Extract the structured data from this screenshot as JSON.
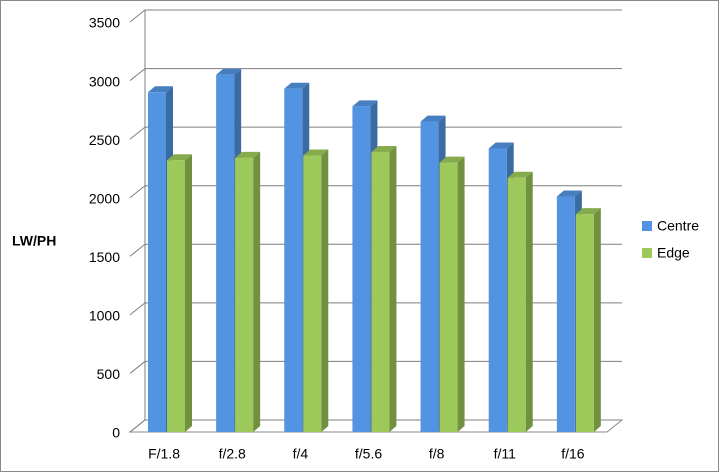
{
  "chart_data": {
    "type": "bar3d",
    "y_axis_label": "LW/PH",
    "categories": [
      "F/1.8",
      "f/2.8",
      "f/4",
      "f/5.6",
      "f/8",
      "f/11",
      "f/16"
    ],
    "series": [
      {
        "name": "Centre",
        "color": "#5294e2",
        "values": [
          2900,
          3050,
          2930,
          2780,
          2650,
          2420,
          2010
        ]
      },
      {
        "name": "Edge",
        "color": "#9dc95a",
        "values": [
          2320,
          2340,
          2360,
          2390,
          2300,
          2170,
          1860
        ]
      }
    ],
    "ylim": [
      0,
      3500
    ],
    "yticks": [
      0,
      500,
      1000,
      1500,
      2000,
      2500,
      3000,
      3500
    ],
    "grid": true,
    "legend": "right"
  }
}
